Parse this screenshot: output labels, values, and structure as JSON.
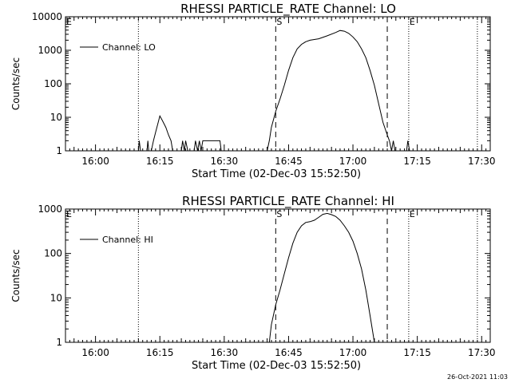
{
  "footer": {
    "timestamp": "26-Oct-2021 11:03"
  },
  "chart_data": [
    {
      "type": "line",
      "title": "RHESSI PARTICLE_RATE Channel: LO",
      "xlabel": "Start Time (02-Dec-03 15:52:50)",
      "ylabel": "Counts/sec",
      "yscale": "log",
      "ylim": [
        1,
        10000
      ],
      "xlim": [
        "15:53",
        "17:32"
      ],
      "y_ticks": [
        "1",
        "10",
        "100",
        "1000",
        "10000"
      ],
      "x_ticks": [
        "16:00",
        "16:15",
        "16:30",
        "16:45",
        "17:00",
        "17:15",
        "17:30"
      ],
      "legend": {
        "position": "top-left",
        "entries": [
          "Channel: LO"
        ]
      },
      "markers": [
        {
          "label": "E",
          "time": "15:53",
          "style": "dotted"
        },
        {
          "label": "",
          "time": "16:10",
          "style": "dotted"
        },
        {
          "label": "S",
          "time": "16:42",
          "style": "dashed"
        },
        {
          "label": "",
          "time": "17:08",
          "style": "dashed"
        },
        {
          "label": "E",
          "time": "17:13",
          "style": "dotted"
        },
        {
          "label": "",
          "time": "17:29",
          "style": "dotted"
        }
      ],
      "series": [
        {
          "name": "Channel: LO",
          "points": [
            [
              "16:10",
              1
            ],
            [
              "16:10.2",
              2
            ],
            [
              "16:10.5",
              1
            ],
            [
              "16:12",
              1
            ],
            [
              "16:12.2",
              2
            ],
            [
              "16:12.4",
              1
            ],
            [
              "16:13",
              1
            ],
            [
              "16:13.5",
              2
            ],
            [
              "16:14",
              3.5
            ],
            [
              "16:14.6",
              7
            ],
            [
              "16:15",
              11
            ],
            [
              "16:15.6",
              8
            ],
            [
              "16:16.4",
              5
            ],
            [
              "16:17",
              3
            ],
            [
              "16:17.6",
              2
            ],
            [
              "16:18",
              1
            ],
            [
              "16:20",
              1
            ],
            [
              "16:20.3",
              2
            ],
            [
              "16:20.7",
              1
            ],
            [
              "16:21",
              2
            ],
            [
              "16:21.5",
              1
            ],
            [
              "16:23",
              1
            ],
            [
              "16:23.3",
              2
            ],
            [
              "16:23.8",
              1
            ],
            [
              "16:24.2",
              2
            ],
            [
              "16:24.6",
              1
            ],
            [
              "16:25",
              2
            ],
            [
              "16:29",
              2
            ],
            [
              "16:29.3",
              1
            ],
            [
              "16:40",
              1
            ],
            [
              "16:40.5",
              2
            ],
            [
              "16:41",
              5
            ],
            [
              "16:42",
              15
            ],
            [
              "16:43",
              35
            ],
            [
              "16:44",
              90
            ],
            [
              "16:45",
              250
            ],
            [
              "16:46",
              600
            ],
            [
              "16:47",
              1100
            ],
            [
              "16:48",
              1500
            ],
            [
              "16:49",
              1800
            ],
            [
              "16:50",
              2000
            ],
            [
              "16:52",
              2200
            ],
            [
              "16:54",
              2700
            ],
            [
              "16:56",
              3400
            ],
            [
              "16:57",
              3900
            ],
            [
              "16:58",
              3700
            ],
            [
              "16:59",
              3200
            ],
            [
              "17:00",
              2500
            ],
            [
              "17:01",
              1800
            ],
            [
              "17:02",
              1100
            ],
            [
              "17:03",
              600
            ],
            [
              "17:04",
              250
            ],
            [
              "17:05",
              90
            ],
            [
              "17:06",
              25
            ],
            [
              "17:07",
              7
            ],
            [
              "17:08",
              3
            ],
            [
              "17:08.5",
              2
            ],
            [
              "17:09",
              1
            ],
            [
              "17:09.4",
              2
            ],
            [
              "17:09.8",
              1
            ],
            [
              "17:12.5",
              1
            ],
            [
              "17:12.8",
              2
            ],
            [
              "17:13.2",
              1
            ]
          ]
        }
      ]
    },
    {
      "type": "line",
      "title": "RHESSI PARTICLE_RATE Channel: HI",
      "xlabel": "Start Time (02-Dec-03 15:52:50)",
      "ylabel": "Counts/sec",
      "yscale": "log",
      "ylim": [
        1,
        1000
      ],
      "xlim": [
        "15:53",
        "17:32"
      ],
      "y_ticks": [
        "1",
        "10",
        "100",
        "1000"
      ],
      "x_ticks": [
        "16:00",
        "16:15",
        "16:30",
        "16:45",
        "17:00",
        "17:15",
        "17:30"
      ],
      "legend": {
        "position": "top-left",
        "entries": [
          "Channel: HI"
        ]
      },
      "markers": [
        {
          "label": "E",
          "time": "15:53",
          "style": "dotted"
        },
        {
          "label": "",
          "time": "16:10",
          "style": "dotted"
        },
        {
          "label": "S",
          "time": "16:42",
          "style": "dashed"
        },
        {
          "label": "",
          "time": "17:08",
          "style": "dashed"
        },
        {
          "label": "E",
          "time": "17:13",
          "style": "dotted"
        },
        {
          "label": "",
          "time": "17:29",
          "style": "dotted"
        }
      ],
      "series": [
        {
          "name": "Channel: HI",
          "points": [
            [
              "16:40.5",
              1
            ],
            [
              "16:41",
              2.5
            ],
            [
              "16:42",
              7
            ],
            [
              "16:43",
              15
            ],
            [
              "16:44",
              35
            ],
            [
              "16:45",
              80
            ],
            [
              "16:46",
              170
            ],
            [
              "16:47",
              300
            ],
            [
              "16:48",
              420
            ],
            [
              "16:49",
              500
            ],
            [
              "16:50",
              520
            ],
            [
              "16:51",
              560
            ],
            [
              "16:52",
              650
            ],
            [
              "16:53",
              760
            ],
            [
              "16:54",
              800
            ],
            [
              "16:55",
              750
            ],
            [
              "16:56",
              680
            ],
            [
              "16:57",
              560
            ],
            [
              "16:58",
              420
            ],
            [
              "16:59",
              300
            ],
            [
              "17:00",
              190
            ],
            [
              "17:01",
              100
            ],
            [
              "17:02",
              45
            ],
            [
              "17:03",
              15
            ],
            [
              "17:04",
              4
            ],
            [
              "17:05",
              1
            ]
          ]
        }
      ]
    }
  ]
}
